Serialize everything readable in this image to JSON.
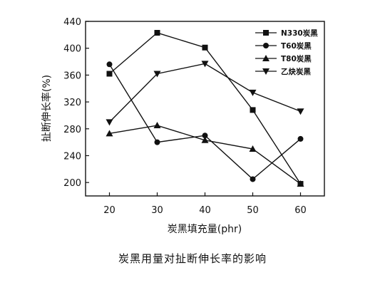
{
  "caption": "炭黑用量对扯断伸长率的影响",
  "chart_data": {
    "type": "line",
    "xlabel": "炭黑填充量(phr)",
    "ylabel": "扯断伸长率(%)",
    "categories": [
      20,
      30,
      40,
      50,
      60
    ],
    "xlim": [
      15,
      65
    ],
    "ylim": [
      180,
      440
    ],
    "xticks": [
      20,
      30,
      40,
      50,
      60
    ],
    "yticks": [
      200,
      240,
      280,
      320,
      360,
      400,
      440
    ],
    "grid": false,
    "legend_position": "top-right",
    "series": [
      {
        "name": "N330炭黑",
        "marker": "square",
        "values": [
          362,
          423,
          401,
          308,
          198
        ]
      },
      {
        "name": "T60炭黑",
        "marker": "circle",
        "values": [
          376,
          260,
          270,
          205,
          265
        ]
      },
      {
        "name": "T80炭黑",
        "marker": "triangle-up",
        "values": [
          273,
          285,
          263,
          250,
          198
        ]
      },
      {
        "name": "乙炔炭黑",
        "marker": "triangle-down",
        "values": [
          290,
          362,
          377,
          334,
          306
        ]
      }
    ]
  }
}
